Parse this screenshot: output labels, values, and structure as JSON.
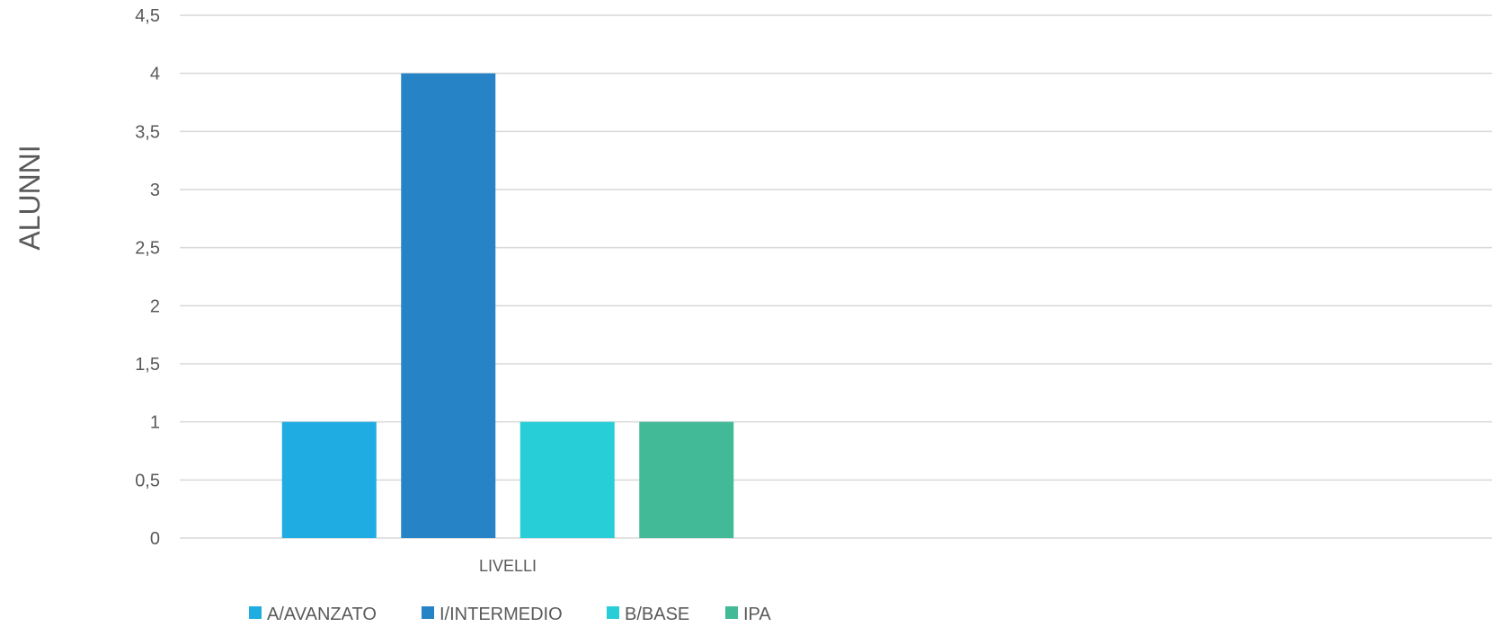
{
  "chart_data": {
    "type": "bar",
    "title": "",
    "xlabel": "",
    "ylabel": "ALUNNI",
    "categories": [
      "LIVELLI"
    ],
    "series": [
      {
        "name": "A/AVANZATO",
        "values": [
          1
        ],
        "color": "#1FACE3"
      },
      {
        "name": "I/INTERMEDIO",
        "values": [
          4
        ],
        "color": "#2683C6"
      },
      {
        "name": "B/BASE",
        "values": [
          1
        ],
        "color": "#27CED7"
      },
      {
        "name": "IPA",
        "values": [
          1
        ],
        "color": "#42BA97"
      }
    ],
    "ylim": [
      0,
      4.5
    ],
    "yticks": [
      "0",
      "0,5",
      "1",
      "1,5",
      "2",
      "2,5",
      "3",
      "3,5",
      "4",
      "4,5"
    ],
    "grid": true,
    "legend_position": "bottom-left"
  }
}
